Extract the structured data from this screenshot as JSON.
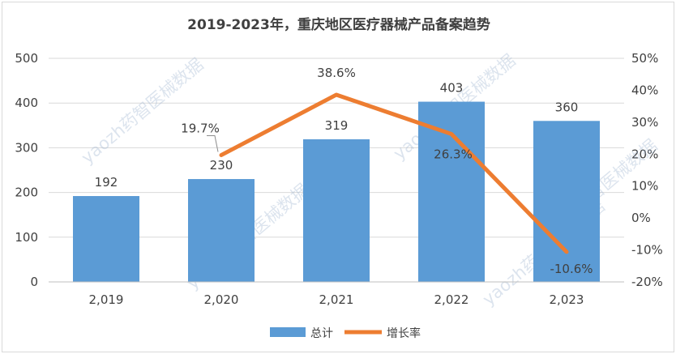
{
  "chart_data": {
    "type": "bar",
    "title": "2019-2023年，重庆地区医疗器械产品备案趋势",
    "categories": [
      "2,019",
      "2,020",
      "2,021",
      "2,022",
      "2,023"
    ],
    "series": [
      {
        "name": "总计",
        "type": "bar",
        "axis": "left",
        "values": [
          192,
          230,
          319,
          403,
          360
        ],
        "labels": [
          "192",
          "230",
          "319",
          "403",
          "360"
        ],
        "color": "#5b9bd5"
      },
      {
        "name": "增长率",
        "type": "line",
        "axis": "right",
        "values": [
          null,
          19.7,
          38.6,
          26.3,
          -10.6
        ],
        "labels": [
          "",
          "19.7%",
          "38.6%",
          "26.3%",
          "-10.6%"
        ],
        "color": "#ed7d31"
      }
    ],
    "ylim_left": [
      0,
      500
    ],
    "yticks_left": [
      "0",
      "100",
      "200",
      "300",
      "400",
      "500"
    ],
    "ylim_right": [
      -20,
      50
    ],
    "yticks_right": [
      "-20%",
      "-10%",
      "0%",
      "10%",
      "20%",
      "30%",
      "40%",
      "50%"
    ],
    "grid": "horizontal",
    "legend_position": "bottom"
  },
  "watermark": "yaozh药智医械数据"
}
